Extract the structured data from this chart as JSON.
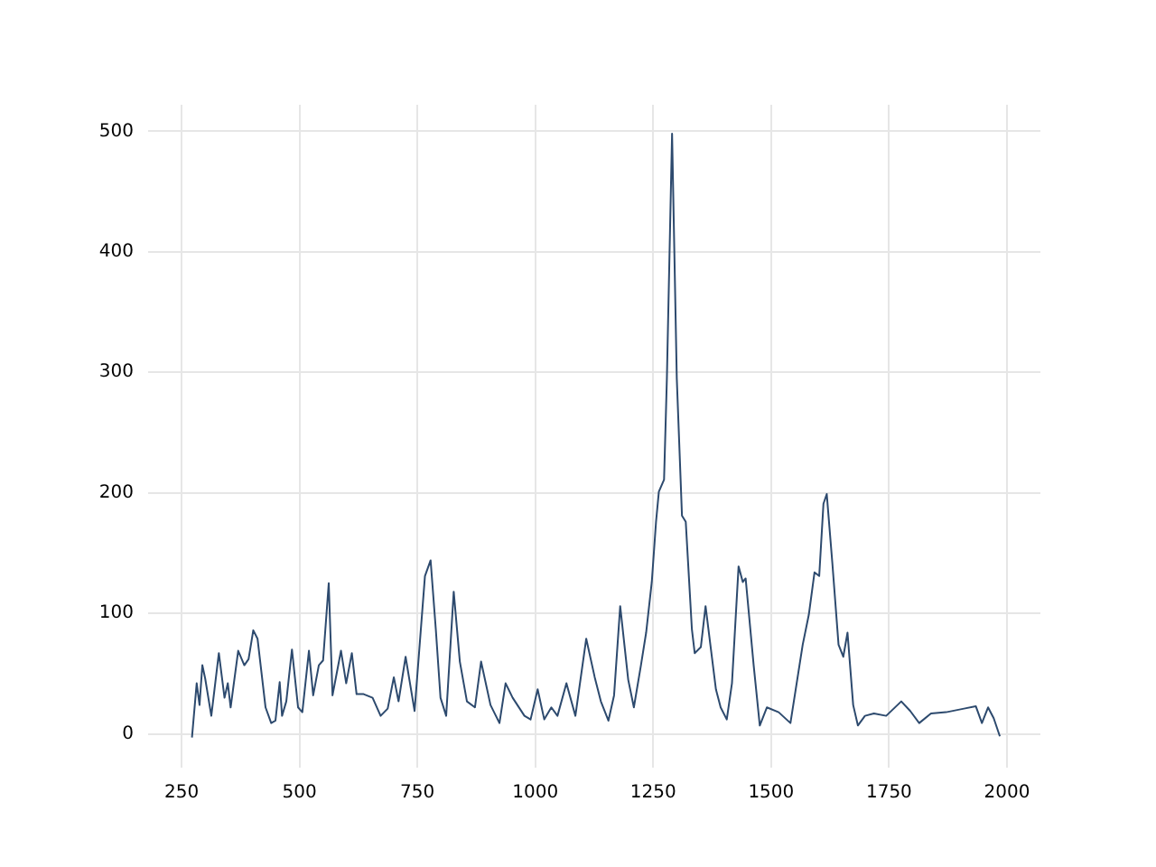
{
  "chart_data": {
    "type": "line",
    "x": [
      272,
      282,
      288,
      294,
      300,
      313,
      329,
      341,
      348,
      354,
      370,
      383,
      392,
      402,
      411,
      428,
      440,
      449,
      458,
      463,
      472,
      484,
      497,
      506,
      520,
      529,
      541,
      550,
      562,
      570,
      588,
      599,
      611,
      621,
      636,
      655,
      672,
      687,
      700,
      710,
      725,
      744,
      766,
      778,
      789,
      799,
      811,
      827,
      840,
      855,
      872,
      885,
      905,
      924,
      937,
      952,
      977,
      990,
      1005,
      1019,
      1034,
      1047,
      1066,
      1085,
      1108,
      1126,
      1139,
      1155,
      1167,
      1180,
      1197,
      1209,
      1224,
      1235,
      1247,
      1256,
      1262,
      1273,
      1279,
      1290,
      1300,
      1311,
      1319,
      1332,
      1338,
      1351,
      1361,
      1383,
      1393,
      1406,
      1417,
      1431,
      1440,
      1446,
      1463,
      1476,
      1491,
      1516,
      1541,
      1567,
      1580,
      1592,
      1602,
      1611,
      1618,
      1630,
      1643,
      1653,
      1662,
      1674,
      1684,
      1699,
      1718,
      1744,
      1776,
      1795,
      1814,
      1839,
      1871,
      1909,
      1934,
      1947,
      1960,
      1972,
      1985
    ],
    "series": [
      {
        "color": "#2d4a6e",
        "values": [
          -3,
          42,
          24,
          57,
          46,
          15,
          67,
          30,
          42,
          22,
          69,
          57,
          62,
          86,
          79,
          22,
          9,
          11,
          43,
          15,
          27,
          70,
          22,
          18,
          69,
          32,
          57,
          61,
          125,
          32,
          69,
          42,
          67,
          33,
          33,
          30,
          15,
          21,
          47,
          27,
          64,
          19,
          131,
          144,
          87,
          30,
          15,
          118,
          60,
          27,
          22,
          60,
          24,
          9,
          42,
          30,
          15,
          12,
          37,
          12,
          22,
          15,
          42,
          15,
          79,
          47,
          27,
          11,
          32,
          106,
          45,
          22,
          57,
          84,
          126,
          176,
          201,
          211,
          295,
          498,
          295,
          181,
          176,
          87,
          67,
          72,
          106,
          37,
          22,
          12,
          42,
          139,
          126,
          129,
          57,
          7,
          22,
          18,
          9,
          74,
          99,
          134,
          131,
          191,
          199,
          141,
          74,
          64,
          84,
          24,
          7,
          15,
          17,
          15,
          27,
          19,
          9,
          17,
          18,
          21,
          23,
          9,
          22,
          13,
          -2
        ]
      }
    ],
    "xlim": [
      179,
      2071
    ],
    "ylim": [
      -28,
      522
    ],
    "xticks": [
      250,
      500,
      750,
      1000,
      1250,
      1500,
      1750,
      2000
    ],
    "yticks": [
      0,
      100,
      200,
      300,
      400,
      500
    ],
    "grid": true
  }
}
